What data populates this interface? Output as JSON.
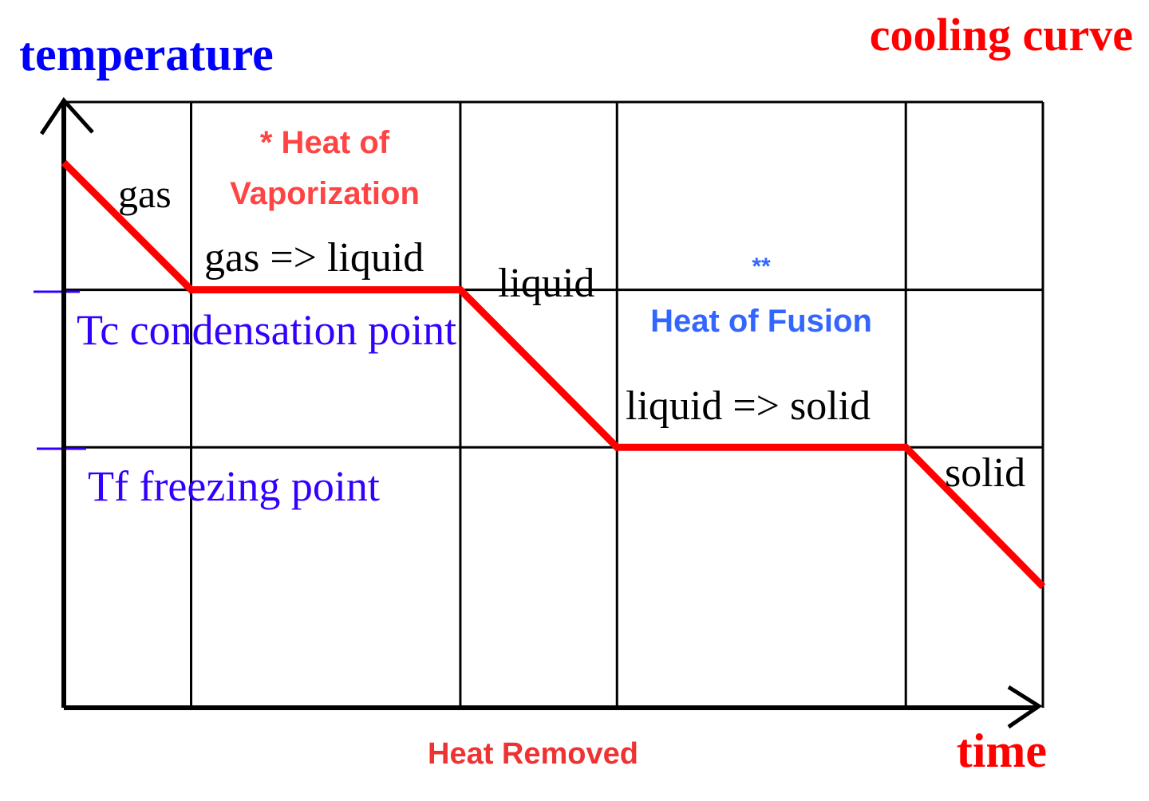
{
  "chart_data": {
    "type": "line",
    "title": "cooling curve",
    "xlabel": "time",
    "ylabel": "temperature",
    "x_caption": "Heat Removed",
    "xlim": [
      0,
      100
    ],
    "ylim": [
      0,
      100
    ],
    "grid": true,
    "series": [
      {
        "x": [
          0,
          13,
          40.5,
          56.5,
          86,
          100
        ],
        "y": [
          90,
          69,
          69,
          43,
          43,
          20
        ]
      }
    ],
    "reference_lines": [
      {
        "label": "Tc condensation point",
        "y": 69
      },
      {
        "label": "Tf freezing point",
        "y": 43
      }
    ],
    "regions": [
      {
        "label": "gas"
      },
      {
        "label": "gas => liquid",
        "note": "* Heat of Vaporization"
      },
      {
        "label": "liquid"
      },
      {
        "label": "liquid => solid",
        "marker": "**",
        "note": "Heat of Fusion"
      },
      {
        "label": "solid"
      }
    ]
  },
  "colors": {
    "curve": "#ff0000",
    "title": "#ff0000",
    "axis_title": "#0000ff",
    "reference": "#3300ff",
    "note_vaporization": "#ff4444",
    "note_fusion": "#3366ff",
    "caption": "#ee3333",
    "axis": "#000000"
  }
}
